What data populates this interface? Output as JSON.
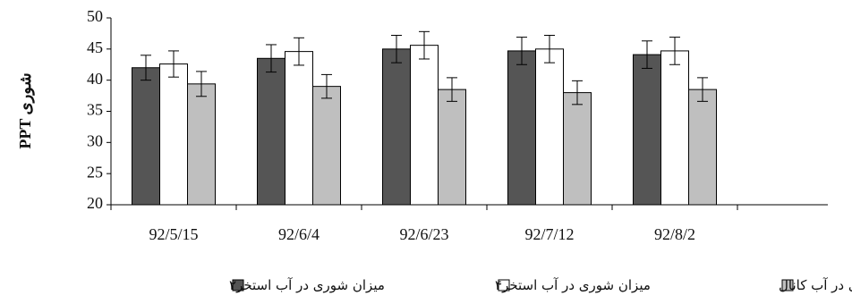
{
  "chart_data": {
    "type": "bar",
    "ylabel": "PPT شوری",
    "ylim": [
      20,
      50
    ],
    "yticks": [
      20,
      25,
      30,
      35,
      40,
      45,
      50
    ],
    "categories": [
      "92/5/15",
      "92/6/4",
      "92/6/23",
      "92/7/12",
      "92/8/2"
    ],
    "error_bars": true,
    "series": [
      {
        "name": "میزان شوری در آب استخر۲",
        "color": "#555555",
        "values": [
          42.0,
          43.5,
          45.0,
          44.7,
          44.1
        ],
        "errors": [
          2.0,
          2.2,
          2.2,
          2.2,
          2.2
        ]
      },
      {
        "name": "میزان شوری در آب استخر۴",
        "color": "#ffffff",
        "values": [
          42.6,
          44.6,
          45.6,
          45.0,
          44.7
        ],
        "errors": [
          2.1,
          2.2,
          2.2,
          2.2,
          2.2
        ]
      },
      {
        "name": "میزان شوری در آب کانال",
        "color": "#bfbfbf",
        "values": [
          39.4,
          39.0,
          38.5,
          38.0,
          38.5
        ],
        "errors": [
          2.0,
          1.9,
          1.9,
          1.9,
          1.9
        ]
      }
    ],
    "legend_position": "bottom",
    "grid": false
  }
}
